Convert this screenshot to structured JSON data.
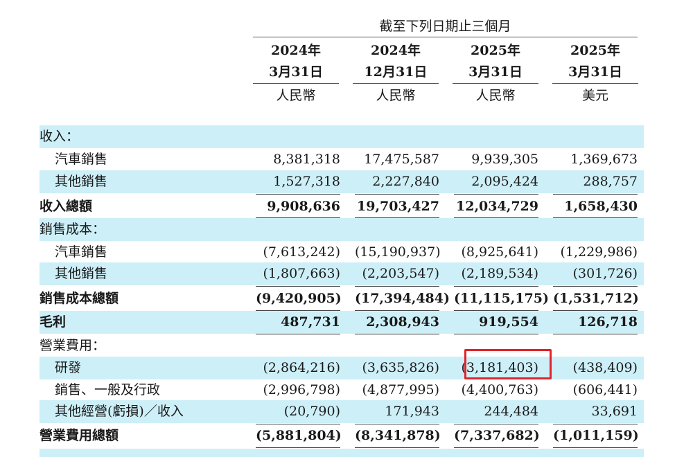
{
  "header": {
    "period_label": "截至下列日期止三個月",
    "columns": [
      {
        "year": "2024年",
        "date": "3月31日",
        "currency": "人民幣"
      },
      {
        "year": "2024年",
        "date": "12月31日",
        "currency": "人民幣"
      },
      {
        "year": "2025年",
        "date": "3月31日",
        "currency": "人民幣"
      },
      {
        "year": "2025年",
        "date": "3月31日",
        "currency": "美元"
      }
    ]
  },
  "rows": [
    {
      "label": "收入：",
      "values": [
        "",
        "",
        "",
        ""
      ]
    },
    {
      "label": "汽車銷售",
      "values": [
        "8,381,318",
        "17,475,587",
        "9,939,305",
        "1,369,673"
      ]
    },
    {
      "label": "其他銷售",
      "values": [
        "1,527,318",
        "2,227,840",
        "2,095,424",
        "288,757"
      ]
    },
    {
      "label": "收入總額",
      "values": [
        "9,908,636",
        "19,703,427",
        "12,034,729",
        "1,658,430"
      ]
    },
    {
      "label": "銷售成本：",
      "values": [
        "",
        "",
        "",
        ""
      ]
    },
    {
      "label": "汽車銷售",
      "values": [
        "(7,613,242)",
        "(15,190,937)",
        "(8,925,641)",
        "(1,229,986)"
      ]
    },
    {
      "label": "其他銷售",
      "values": [
        "(1,807,663)",
        "(2,203,547)",
        "(2,189,534)",
        "(301,726)"
      ]
    },
    {
      "label": "銷售成本總額",
      "values": [
        "(9,420,905)",
        "(17,394,484)",
        "(11,115,175)",
        "(1,531,712)"
      ]
    },
    {
      "label": "毛利",
      "values": [
        "487,731",
        "2,308,943",
        "919,554",
        "126,718"
      ]
    },
    {
      "label": "營業費用：",
      "values": [
        "",
        "",
        "",
        ""
      ]
    },
    {
      "label": "研發",
      "values": [
        "(2,864,216)",
        "(3,635,826)",
        "(3,181,403)",
        "(438,409)"
      ]
    },
    {
      "label": "銷售、一般及行政",
      "values": [
        "(2,996,798)",
        "(4,877,995)",
        "(4,400,763)",
        "(606,441)"
      ]
    },
    {
      "label": "其他經營(虧損)／收入",
      "values": [
        "(20,790)",
        "171,943",
        "244,484",
        "33,691"
      ]
    },
    {
      "label": "營業費用總額",
      "values": [
        "(5,881,804)",
        "(8,341,878)",
        "(7,337,682)",
        "(1,011,159)"
      ]
    }
  ],
  "colors": {
    "row_shade": "#cdeff8",
    "highlight": "#e0242b"
  }
}
